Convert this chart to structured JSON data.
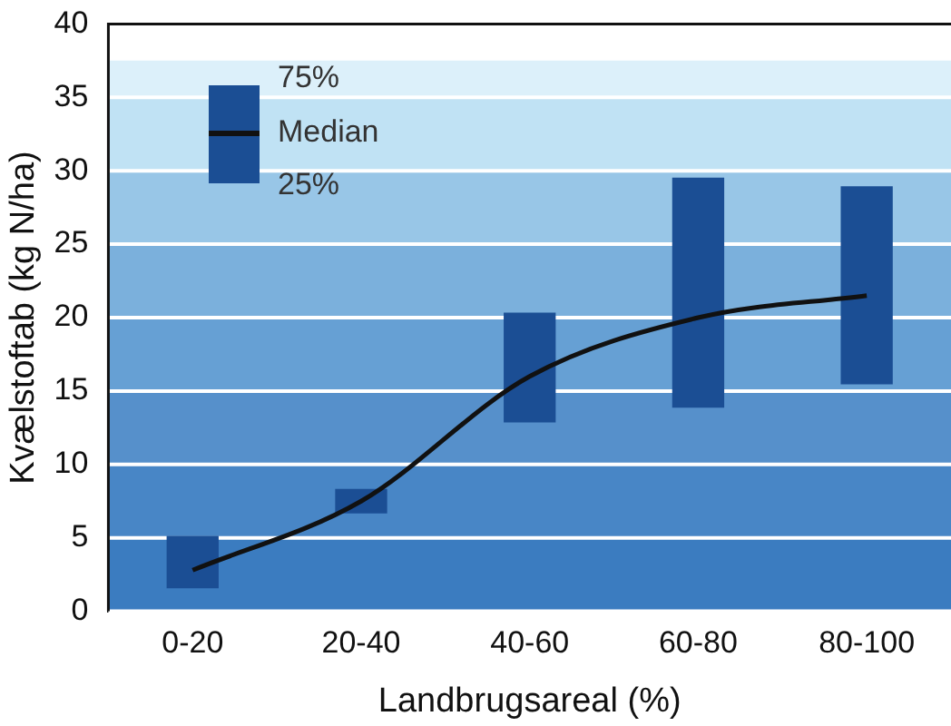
{
  "chart_data": {
    "type": "bar",
    "xlabel": "Landbrugsareal (%)",
    "ylabel": "Kvælstoftab (kg N/ha)",
    "categories": [
      "0-20",
      "20-40",
      "40-60",
      "60-80",
      "80-100"
    ],
    "series": [
      {
        "color": "#1b4e94",
        "values": [
          3.5,
          1.6,
          7.4,
          15.6,
          13.4
        ],
        "base": [
          1.6,
          6.7,
          12.9,
          13.9,
          15.5
        ]
      },
      {
        "type": "line",
        "color": "#111111",
        "values": [
          2.8,
          7.5,
          16.0,
          20.0,
          21.5
        ]
      }
    ],
    "ylim": [
      0,
      40
    ],
    "yticks": [
      0,
      5,
      10,
      15,
      20,
      25,
      30,
      35,
      40
    ],
    "grid": "y",
    "legend": false,
    "marker": "none",
    "line_style": "solid",
    "bands": [
      {
        "axis": "y",
        "from": 0,
        "to": 5,
        "color": "#3b7cc0"
      },
      {
        "axis": "y",
        "from": 5,
        "to": 10,
        "color": "#4886c6"
      },
      {
        "axis": "y",
        "from": 10,
        "to": 15,
        "color": "#5690cb"
      },
      {
        "axis": "y",
        "from": 15,
        "to": 20,
        "color": "#66a0d4"
      },
      {
        "axis": "y",
        "from": 20,
        "to": 25,
        "color": "#7bb0dc"
      },
      {
        "axis": "y",
        "from": 25,
        "to": 30,
        "color": "#98c6e7"
      },
      {
        "axis": "y",
        "from": 30,
        "to": 35,
        "color": "#c0e2f4"
      },
      {
        "axis": "y",
        "from": 35,
        "to": 37.5,
        "color": "#dcf0fa"
      }
    ],
    "annotations": [
      "75%",
      "Median",
      "25%"
    ]
  }
}
